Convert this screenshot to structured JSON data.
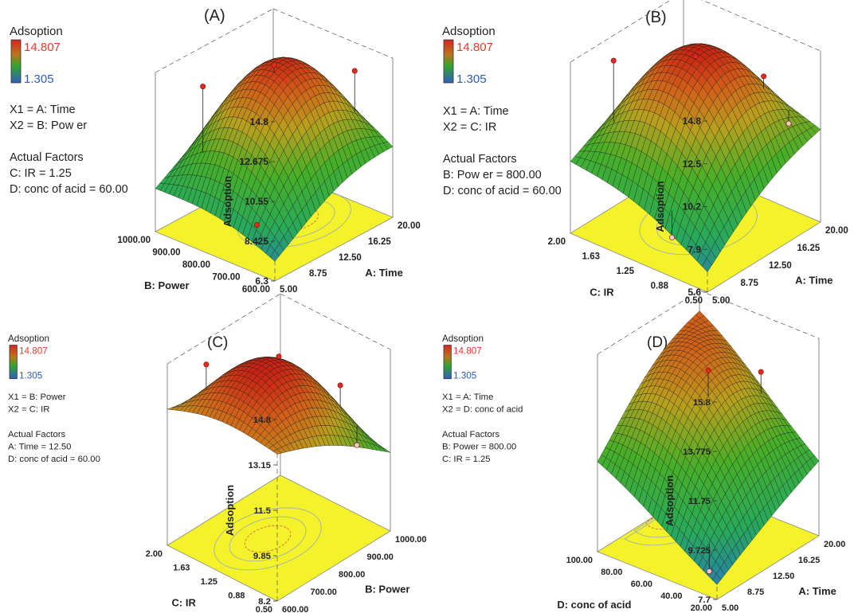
{
  "chart_data": [
    {
      "type": "surface3d",
      "panel_label": "(A)",
      "legend": {
        "title": "Adsoption",
        "max": "14.807",
        "min": "1.305",
        "high_color": "#e8392e",
        "low_color": "#2c5db8"
      },
      "factor_lines": [
        "X1 = A: Time",
        "X2 = B: Pow er",
        "",
        "Actual Factors",
        "C: IR = 1.25",
        "D: conc of acid = 60.00"
      ],
      "zlabel": "Adsoption",
      "zticks": [
        "14.8",
        "12.675",
        "10.55",
        "8.425",
        "6.3"
      ],
      "xlabel": "A: Time",
      "xticks": [
        "5.00",
        "8.75",
        "12.50",
        "16.25",
        "20.00"
      ],
      "ylabel": "B: Power",
      "yticks": [
        "600.00",
        "700.00",
        "800.00",
        "900.00",
        "1000.00"
      ],
      "zlim": [
        6.3,
        14.8
      ],
      "peak": {
        "x": 0.62,
        "y": 0.45,
        "z": 14.7
      },
      "corner_z": {
        "x0y0": 6.6,
        "x1y0": 8.8,
        "x0y1": 8.0,
        "x1y1": 10.3
      },
      "design_points": [
        {
          "x": 0.5,
          "y": 0.5,
          "z": 14.807
        },
        {
          "x": 0.15,
          "y": 0.75,
          "z": 14.2
        },
        {
          "x": 0.88,
          "y": 0.2,
          "z": 14.0
        },
        {
          "x": 0.05,
          "y": 0.2,
          "z": 8.6
        }
      ]
    },
    {
      "type": "surface3d",
      "panel_label": "(B)",
      "legend": {
        "title": "Adsoption",
        "max": "14.807",
        "min": "1.305",
        "high_color": "#e8392e",
        "low_color": "#2c5db8"
      },
      "factor_lines": [
        "X1 = A: Time",
        "X2 = C: IR",
        "",
        "Actual Factors",
        "B: Pow er = 800.00",
        "D: conc of acid = 60.00"
      ],
      "zlabel": "Adsoption",
      "zticks": [
        "14.8",
        "12.5",
        "10.2",
        "7.9",
        "5.6"
      ],
      "xlabel": "A: Time",
      "xticks": [
        "5.00",
        "8.75",
        "12.50",
        "16.25",
        "20.00"
      ],
      "ylabel": "C: IR",
      "yticks": [
        "0.50",
        "0.88",
        "1.25",
        "1.63",
        "2.00"
      ],
      "zlim": [
        5.6,
        14.8
      ],
      "peak": {
        "x": 0.55,
        "y": 0.52,
        "z": 14.8
      },
      "corner_z": {
        "x0y0": 5.9,
        "x1y0": 9.6,
        "x0y1": 8.6,
        "x1y1": 9.8
      },
      "design_points": [
        {
          "x": 0.5,
          "y": 0.5,
          "z": 14.807
        },
        {
          "x": 0.2,
          "y": 0.85,
          "z": 14.6
        },
        {
          "x": 0.8,
          "y": 0.25,
          "z": 13.4
        },
        {
          "x": 0.9,
          "y": 0.15,
          "z": 10.8
        },
        {
          "x": 0.05,
          "y": 0.3,
          "z": 7.4
        }
      ]
    },
    {
      "type": "surface3d",
      "panel_label": "(C)",
      "legend": {
        "title": "Adsoption",
        "max": "14.807",
        "min": "1.305",
        "high_color": "#e8392e",
        "low_color": "#2c5db8"
      },
      "factor_lines": [
        "X1 = B: Power",
        "X2 = C: IR",
        "",
        "Actual Factors",
        "A: Time = 12.50",
        "D: conc of acid = 60.00"
      ],
      "zlabel": "Adsoption",
      "zticks": [
        "14.8",
        "13.15",
        "11.5",
        "9.85",
        "8.2"
      ],
      "xlabel": "B: Power",
      "xticks": [
        "600.00",
        "700.00",
        "800.00",
        "900.00",
        "1000.00"
      ],
      "ylabel": "C: IR",
      "yticks": [
        "0.50",
        "0.88",
        "1.25",
        "1.63",
        "2.00"
      ],
      "zlim": [
        8.2,
        14.8
      ],
      "peak": {
        "x": 0.45,
        "y": 0.55,
        "z": 14.8
      },
      "corner_z": {
        "x0y0": 13.1,
        "x1y0": 10.7,
        "x0y1": 12.6,
        "x1y1": 10.5
      },
      "design_points": [
        {
          "x": 0.5,
          "y": 0.5,
          "z": 14.807
        },
        {
          "x": 0.15,
          "y": 0.8,
          "z": 14.8
        },
        {
          "x": 0.8,
          "y": 0.25,
          "z": 13.5
        },
        {
          "x": 0.85,
          "y": 0.15,
          "z": 11.4
        }
      ]
    },
    {
      "type": "surface3d",
      "panel_label": "(D)",
      "legend": {
        "title": "Adsoption",
        "max": "14.807",
        "min": "1.305",
        "high_color": "#e8392e",
        "low_color": "#2c5db8"
      },
      "factor_lines": [
        "X1 = A: Time",
        "X2 = D: conc of acid",
        "",
        "Actual Factors",
        "B: Power = 800.00",
        "C: IR = 1.25"
      ],
      "zlabel": "Adsoption",
      "zticks": [
        "15.8",
        "13.775",
        "11.75",
        "9.725",
        "7.7"
      ],
      "xlabel": "A: Time",
      "xticks": [
        "5.00",
        "8.75",
        "12.50",
        "16.25",
        "20.00"
      ],
      "ylabel": "D: conc of acid",
      "yticks": [
        "20.00",
        "40.00",
        "60.00",
        "80.00",
        "100.00"
      ],
      "zlim": [
        7.7,
        15.8
      ],
      "peak": {
        "x": 0.6,
        "y": 0.92,
        "z": 15.8
      },
      "corner_z": {
        "x0y0": 8.2,
        "x1y0": 10.6,
        "x0y1": 10.7,
        "x1y1": 13.9
      },
      "design_points": [
        {
          "x": 0.5,
          "y": 0.5,
          "z": 14.807
        },
        {
          "x": 0.9,
          "y": 0.4,
          "z": 13.9
        },
        {
          "x": 0.1,
          "y": 0.15,
          "z": 8.3
        }
      ]
    }
  ]
}
